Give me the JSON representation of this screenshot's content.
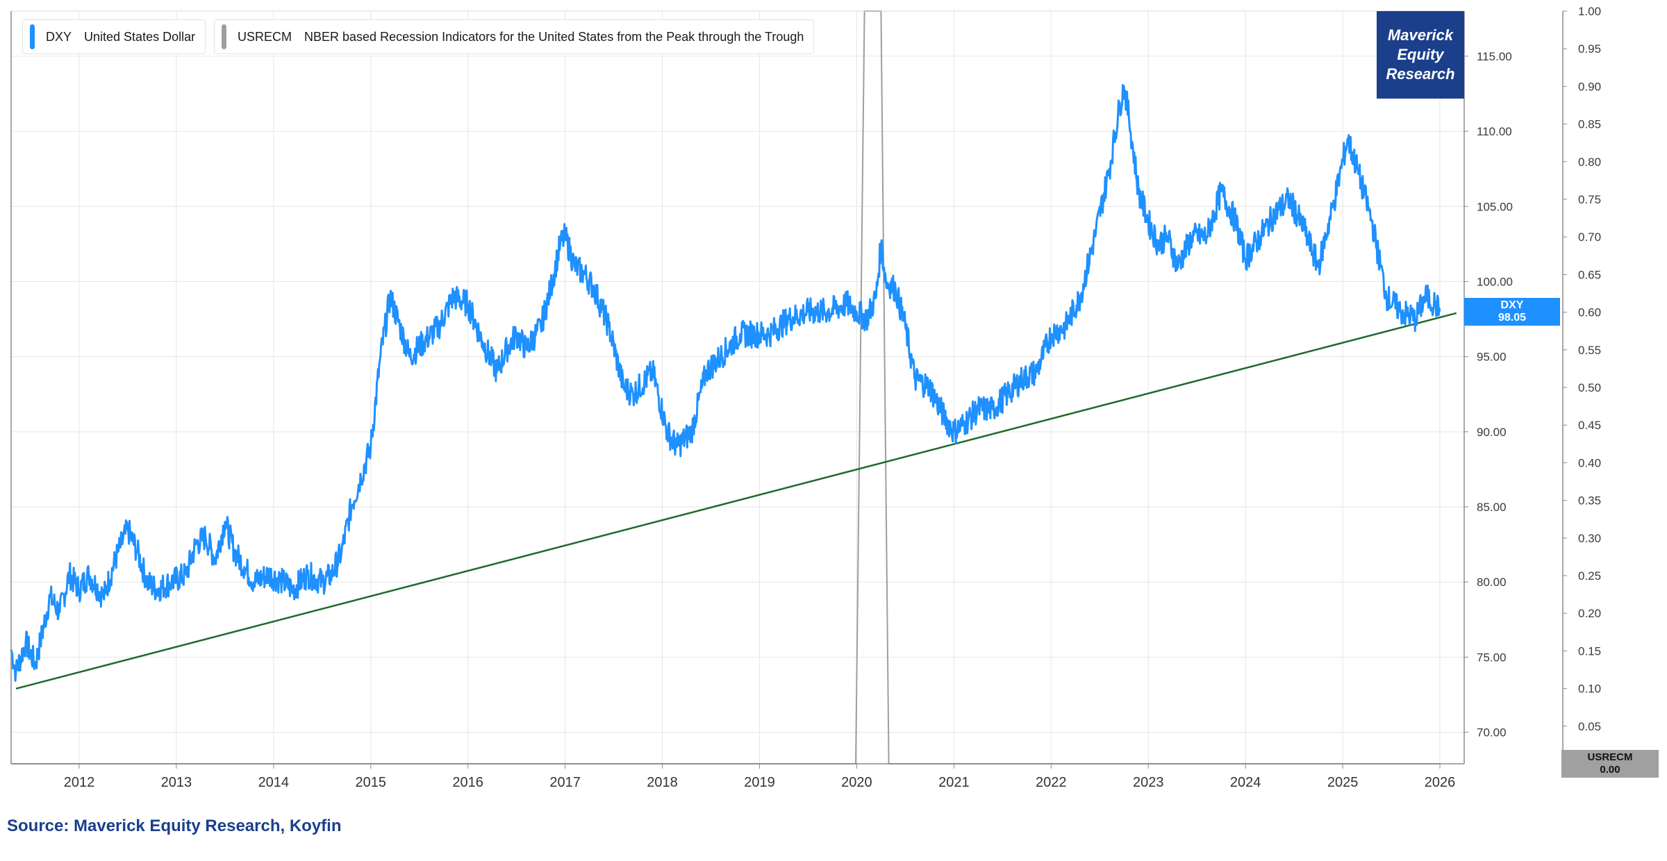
{
  "legend": {
    "dxy": {
      "ticker": "DXY",
      "label": "United States Dollar",
      "color": "#1e90ff"
    },
    "usrecm": {
      "ticker": "USRECM",
      "label": "NBER based Recession Indicators for the United States from the Peak through the Trough",
      "color": "#9e9e9e"
    }
  },
  "logo": {
    "line1": "Maverick",
    "line2": "Equity",
    "line3": "Research",
    "color": "#1b3f8b"
  },
  "badges": {
    "dxy": {
      "name": "DXY",
      "value": "98.05"
    },
    "usrecm": {
      "name": "USRECM",
      "value": "0.00"
    }
  },
  "source": "Source: Maverick Equity Research, Koyfin",
  "chart_data": {
    "type": "line",
    "x_axis": {
      "ticks": [
        "2012",
        "2013",
        "2014",
        "2015",
        "2016",
        "2017",
        "2018",
        "2019",
        "2020",
        "2021",
        "2022",
        "2023",
        "2024",
        "2025",
        "2026"
      ],
      "range": [
        2011.3,
        2026.25
      ]
    },
    "y_axis_left": {
      "ticks": [
        "115.00",
        "110.00",
        "105.00",
        "100.00",
        "95.00",
        "90.00",
        "85.00",
        "80.00",
        "75.00",
        "70.00"
      ],
      "range": [
        67.9,
        118.0
      ]
    },
    "y_axis_right": {
      "ticks": [
        "1.00",
        "0.95",
        "0.90",
        "0.85",
        "0.80",
        "0.75",
        "0.70",
        "0.65",
        "0.60",
        "0.55",
        "0.50",
        "0.45",
        "0.40",
        "0.35",
        "0.30",
        "0.25",
        "0.20",
        "0.15",
        "0.10",
        "0.05",
        "0.00"
      ],
      "range": [
        0,
        1
      ]
    },
    "grid": true,
    "series": [
      {
        "name": "DXY United States Dollar",
        "color": "#1e90ff",
        "x": [
          2011.3,
          2011.35,
          2011.45,
          2011.55,
          2011.6,
          2011.7,
          2011.8,
          2011.9,
          2012.0,
          2012.1,
          2012.25,
          2012.4,
          2012.5,
          2012.6,
          2012.7,
          2012.8,
          2012.95,
          2013.1,
          2013.2,
          2013.3,
          2013.4,
          2013.5,
          2013.6,
          2013.7,
          2013.8,
          2013.95,
          2014.1,
          2014.2,
          2014.35,
          2014.5,
          2014.6,
          2014.7,
          2014.8,
          2014.9,
          2015.0,
          2015.1,
          2015.2,
          2015.3,
          2015.4,
          2015.55,
          2015.7,
          2015.85,
          2016.0,
          2016.15,
          2016.3,
          2016.4,
          2016.5,
          2016.6,
          2016.75,
          2016.85,
          2016.95,
          2017.0,
          2017.1,
          2017.2,
          2017.3,
          2017.45,
          2017.6,
          2017.7,
          2017.9,
          2018.05,
          2018.15,
          2018.3,
          2018.45,
          2018.6,
          2018.8,
          2018.95,
          2019.1,
          2019.3,
          2019.5,
          2019.7,
          2019.9,
          2020.0,
          2020.1,
          2020.2,
          2020.25,
          2020.3,
          2020.4,
          2020.5,
          2020.6,
          2020.75,
          2020.9,
          2021.0,
          2021.1,
          2021.25,
          2021.4,
          2021.55,
          2021.7,
          2021.85,
          2022.0,
          2022.15,
          2022.3,
          2022.45,
          2022.6,
          2022.7,
          2022.75,
          2022.8,
          2022.9,
          2023.0,
          2023.1,
          2023.2,
          2023.3,
          2023.45,
          2023.6,
          2023.75,
          2023.9,
          2024.0,
          2024.15,
          2024.3,
          2024.45,
          2024.6,
          2024.75,
          2024.9,
          2025.0,
          2025.05,
          2025.15,
          2025.3,
          2025.45,
          2025.6,
          2025.75,
          2025.85,
          2025.95,
          2026.0
        ],
        "values": [
          75.5,
          74.0,
          76.0,
          74.5,
          76.0,
          79.0,
          78.0,
          80.5,
          79.5,
          80.5,
          79.0,
          82.0,
          83.5,
          82.0,
          80.0,
          79.5,
          80.0,
          80.5,
          82.5,
          83.0,
          81.5,
          84.0,
          82.0,
          81.0,
          80.0,
          80.5,
          80.0,
          79.5,
          80.5,
          80.0,
          80.5,
          82.0,
          85.0,
          87.0,
          89.0,
          95.0,
          99.0,
          97.0,
          95.0,
          96.0,
          97.0,
          99.0,
          98.5,
          96.0,
          94.0,
          95.5,
          96.5,
          95.5,
          97.0,
          99.5,
          102.5,
          103.0,
          101.0,
          100.5,
          99.5,
          97.0,
          93.0,
          92.5,
          94.0,
          90.0,
          89.0,
          90.0,
          94.0,
          95.0,
          96.5,
          96.5,
          96.5,
          97.5,
          98.0,
          98.0,
          98.5,
          98.0,
          97.5,
          99.0,
          102.5,
          100.0,
          99.5,
          97.0,
          93.5,
          93.0,
          91.0,
          90.0,
          90.5,
          91.5,
          91.5,
          92.5,
          93.5,
          94.0,
          96.5,
          97.0,
          99.0,
          103.0,
          107.5,
          111.5,
          113.0,
          111.0,
          106.0,
          104.0,
          102.5,
          103.0,
          101.0,
          103.0,
          103.0,
          106.0,
          104.0,
          101.5,
          103.0,
          104.5,
          105.5,
          103.5,
          101.0,
          105.0,
          108.0,
          109.5,
          107.5,
          104.0,
          99.0,
          98.0,
          97.5,
          99.0,
          98.5,
          98.0
        ]
      },
      {
        "name": "USRECM NBER based Recession Indicators for the United States from the Peak through the Trough",
        "color": "#9e9e9e",
        "x": [
          2011.3,
          2019.99,
          2020.08,
          2020.25,
          2020.33,
          2026.0
        ],
        "values": [
          0,
          0,
          1,
          1,
          0,
          0
        ]
      },
      {
        "name": "Trendline",
        "color": "#1e6b2e",
        "x": [
          2011.35,
          2026.17
        ],
        "values": [
          72.9,
          97.9
        ]
      }
    ]
  }
}
